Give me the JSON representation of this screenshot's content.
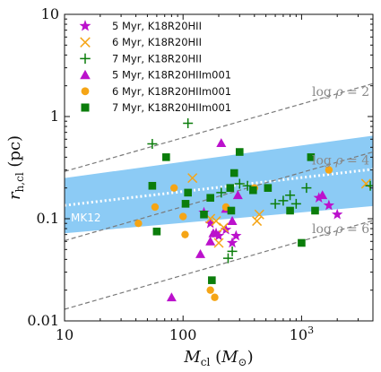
{
  "chart_data": {
    "type": "scatter",
    "x_scale": "log",
    "y_scale": "log",
    "xlim": [
      10,
      4000
    ],
    "ylim": [
      0.01,
      10
    ],
    "x_ticks": [
      {
        "value": 10,
        "label": "10"
      },
      {
        "value": 100,
        "label": "100"
      },
      {
        "value": 1000,
        "label": "10³"
      }
    ],
    "y_ticks": [
      {
        "value": 0.01,
        "label": "0.01"
      },
      {
        "value": 0.1,
        "label": "0.1"
      },
      {
        "value": 1,
        "label": "1"
      },
      {
        "value": 10,
        "label": "10"
      }
    ],
    "xlabel": "M_cl (M_⊙)",
    "ylabel": "r_h,cl (pc)",
    "legend_position": "top-left",
    "colors": {
      "purple": "#bb11cc",
      "orange": "#f5a516",
      "green": "#0b7d0b",
      "band": "#8ccbf5",
      "guide": "#7a7a7a"
    },
    "band": {
      "label": "MK12",
      "x": [
        10,
        4000
      ],
      "lower": [
        0.072,
        0.133
      ],
      "upper": [
        0.25,
        0.65
      ],
      "median": [
        0.135,
        0.305
      ]
    },
    "density_lines": [
      {
        "label": "log ρ = 2",
        "x": [
          10,
          4000
        ],
        "y": [
          0.29,
          2.1
        ]
      },
      {
        "label": "log ρ = 4",
        "x": [
          10,
          4000
        ],
        "y": [
          0.061,
          0.45
        ]
      },
      {
        "label": "log ρ = 6",
        "x": [
          10,
          4000
        ],
        "y": [
          0.013,
          0.096
        ]
      }
    ],
    "series": [
      {
        "name": "5 Myr, K18R20HII",
        "marker": "star",
        "color": "#bb11cc",
        "points": [
          [
            150,
            0.115
          ],
          [
            170,
            0.09
          ],
          [
            190,
            0.072
          ],
          [
            200,
            0.068
          ],
          [
            230,
            0.078
          ],
          [
            260,
            0.058
          ],
          [
            280,
            0.068
          ],
          [
            1400,
            0.16
          ],
          [
            1700,
            0.135
          ],
          [
            2000,
            0.11
          ]
        ]
      },
      {
        "name": "6 Myr, K18R20HII",
        "marker": "x",
        "color": "#f5a516",
        "points": [
          [
            120,
            0.25
          ],
          [
            170,
            0.1
          ],
          [
            190,
            0.095
          ],
          [
            200,
            0.058
          ],
          [
            220,
            0.082
          ],
          [
            420,
            0.095
          ],
          [
            440,
            0.11
          ],
          [
            3500,
            0.22
          ]
        ]
      },
      {
        "name": "7 Myr, K18R20HII",
        "marker": "plus",
        "color": "#0b7d0b",
        "points": [
          [
            55,
            0.54
          ],
          [
            110,
            0.86
          ],
          [
            210,
            0.18
          ],
          [
            240,
            0.041
          ],
          [
            260,
            0.048
          ],
          [
            300,
            0.22
          ],
          [
            350,
            0.21
          ],
          [
            600,
            0.14
          ],
          [
            700,
            0.15
          ],
          [
            800,
            0.17
          ],
          [
            900,
            0.14
          ],
          [
            1100,
            0.2
          ],
          [
            3800,
            0.21
          ]
        ]
      },
      {
        "name": "5 Myr, K18R20HIIm001",
        "marker": "triangle",
        "color": "#bb11cc",
        "points": [
          [
            80,
            0.017
          ],
          [
            140,
            0.045
          ],
          [
            170,
            0.06
          ],
          [
            180,
            0.072
          ],
          [
            210,
            0.55
          ],
          [
            230,
            0.125
          ],
          [
            260,
            0.095
          ],
          [
            290,
            0.17
          ],
          [
            1500,
            0.17
          ]
        ]
      },
      {
        "name": "6 Myr, K18R20HIIm001",
        "marker": "circle",
        "color": "#f5a516",
        "points": [
          [
            42,
            0.09
          ],
          [
            58,
            0.13
          ],
          [
            84,
            0.2
          ],
          [
            100,
            0.105
          ],
          [
            104,
            0.07
          ],
          [
            170,
            0.02
          ],
          [
            185,
            0.017
          ],
          [
            230,
            0.13
          ],
          [
            400,
            0.2
          ],
          [
            1700,
            0.3
          ]
        ]
      },
      {
        "name": "7 Myr, K18R20HIIm001",
        "marker": "square",
        "color": "#0b7d0b",
        "points": [
          [
            55,
            0.21
          ],
          [
            60,
            0.075
          ],
          [
            72,
            0.4
          ],
          [
            105,
            0.14
          ],
          [
            110,
            0.18
          ],
          [
            150,
            0.11
          ],
          [
            170,
            0.16
          ],
          [
            175,
            0.025
          ],
          [
            250,
            0.2
          ],
          [
            255,
            0.12
          ],
          [
            270,
            0.28
          ],
          [
            300,
            0.45
          ],
          [
            390,
            0.19
          ],
          [
            520,
            0.2
          ],
          [
            800,
            0.12
          ],
          [
            1000,
            0.058
          ],
          [
            1200,
            0.4
          ],
          [
            1300,
            0.12
          ]
        ]
      }
    ]
  }
}
